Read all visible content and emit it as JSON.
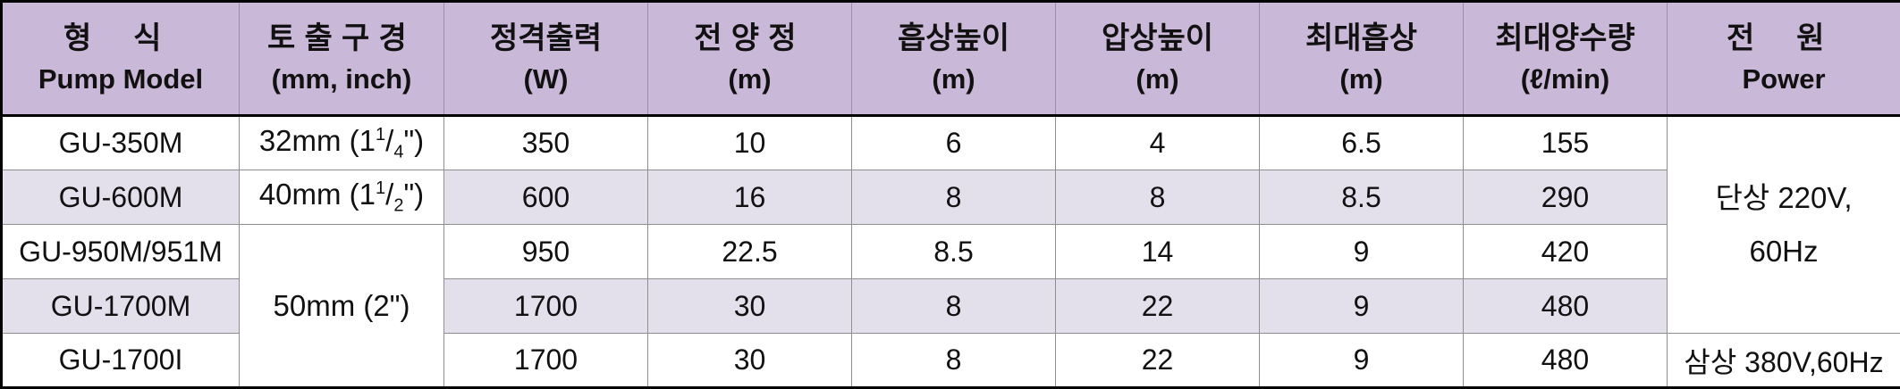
{
  "header": {
    "model": {
      "ko": "형  식",
      "en": "Pump Model"
    },
    "port": {
      "ko": "토출구경",
      "en": "(mm, inch)"
    },
    "output": {
      "ko": "정격출력",
      "en": "(W)"
    },
    "head": {
      "ko": "전양정",
      "en": "(m)"
    },
    "suction_height": {
      "ko": "흡상높이",
      "en": "(m)"
    },
    "pressure_height": {
      "ko": "압상높이",
      "en": "(m)"
    },
    "max_suction": {
      "ko": "최대흡상",
      "en": "(m)"
    },
    "max_flow": {
      "ko": "최대양수량",
      "en": "(ℓ/min)"
    },
    "power": {
      "ko": "전  원",
      "en": "Power"
    }
  },
  "ports": {
    "p32": {
      "mm": "32mm (1",
      "sup": "1",
      "slash": "/",
      "sub": "4",
      "end": "\")"
    },
    "p40": {
      "mm": "40mm (1",
      "sup": "1",
      "slash": "/",
      "sub": "2",
      "end": "\")"
    },
    "p50": "50mm (2\")"
  },
  "rows": [
    {
      "model": "GU-350M",
      "output": "350",
      "head": "10",
      "suction": "6",
      "pressure": "4",
      "max_suction": "6.5",
      "max_flow": "155"
    },
    {
      "model": "GU-600M",
      "output": "600",
      "head": "16",
      "suction": "8",
      "pressure": "8",
      "max_suction": "8.5",
      "max_flow": "290"
    },
    {
      "model": "GU-950M/951M",
      "output": "950",
      "head": "22.5",
      "suction": "8.5",
      "pressure": "14",
      "max_suction": "9",
      "max_flow": "420"
    },
    {
      "model": "GU-1700M",
      "output": "1700",
      "head": "30",
      "suction": "8",
      "pressure": "22",
      "max_suction": "9",
      "max_flow": "480"
    },
    {
      "model": "GU-1700I",
      "output": "1700",
      "head": "30",
      "suction": "8",
      "pressure": "22",
      "max_suction": "9",
      "max_flow": "480"
    }
  ],
  "power": {
    "single_line1": "단상 220V,",
    "single_line2": "60Hz",
    "three": "삼상 380V,60Hz"
  },
  "colors": {
    "header_bg": "#c9b8d7",
    "shade_bg": "#e3e0ec",
    "border": "#8e8e8e",
    "frame": "#000000"
  }
}
